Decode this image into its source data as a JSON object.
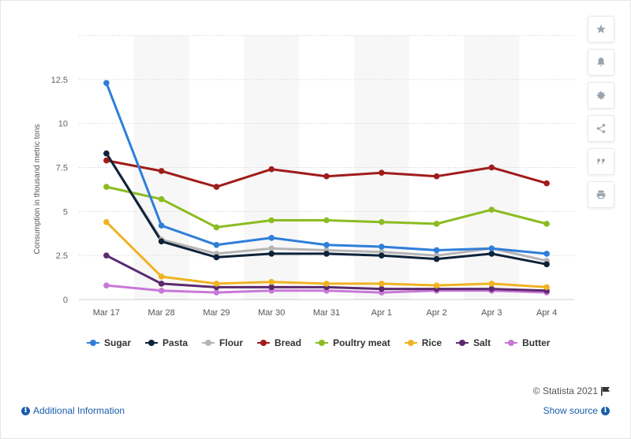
{
  "chart_data": {
    "type": "line",
    "title": "",
    "ylabel": "Consumption in thousand metric tons",
    "xlabel": "",
    "categories": [
      "Mar 17",
      "Mar 28",
      "Mar 29",
      "Mar 30",
      "Mar 31",
      "Apr 1",
      "Apr 2",
      "Apr 3",
      "Apr 4"
    ],
    "ylim": [
      0,
      15
    ],
    "yticks": [
      0,
      2.5,
      5,
      7.5,
      10,
      12.5
    ],
    "ytick_labels": [
      "0",
      "2.5",
      "5",
      "7.5",
      "10",
      "12.5"
    ],
    "grid": true,
    "legend_position": "bottom",
    "series": [
      {
        "name": "Sugar",
        "color": "#2f7ed8",
        "values": [
          12.3,
          4.2,
          3.1,
          3.5,
          3.1,
          3.0,
          2.8,
          2.9,
          2.6
        ]
      },
      {
        "name": "Pasta",
        "color": "#0d233a",
        "values": [
          8.3,
          3.3,
          2.4,
          2.6,
          2.6,
          2.5,
          2.3,
          2.6,
          2.0
        ]
      },
      {
        "name": "Flour",
        "color": "#b5b5b5",
        "values": [
          8.3,
          3.4,
          2.6,
          2.9,
          2.8,
          2.7,
          2.5,
          2.9,
          2.2
        ]
      },
      {
        "name": "Bread",
        "color": "#a01c1c",
        "values": [
          7.9,
          7.3,
          6.4,
          7.4,
          7.0,
          7.2,
          7.0,
          7.5,
          6.6
        ]
      },
      {
        "name": "Poultry meat",
        "color": "#8bbc21",
        "values": [
          6.4,
          5.7,
          4.1,
          4.5,
          4.5,
          4.4,
          4.3,
          5.1,
          4.3
        ]
      },
      {
        "name": "Rice",
        "color": "#f0b323",
        "values": [
          4.4,
          1.3,
          0.9,
          1.0,
          0.9,
          0.9,
          0.8,
          0.9,
          0.7
        ]
      },
      {
        "name": "Salt",
        "color": "#5b2a6e",
        "values": [
          2.5,
          0.9,
          0.7,
          0.7,
          0.7,
          0.6,
          0.6,
          0.6,
          0.5
        ]
      },
      {
        "name": "Butter",
        "color": "#c978d8",
        "values": [
          0.8,
          0.5,
          0.4,
          0.5,
          0.5,
          0.4,
          0.5,
          0.5,
          0.4
        ]
      }
    ]
  },
  "toolbar": {
    "icons": [
      "star-icon",
      "bell-icon",
      "gear-icon",
      "share-icon",
      "quote-icon",
      "print-icon"
    ]
  },
  "footer": {
    "credit": "© Statista 2021",
    "additional_info": "Additional Information",
    "show_source": "Show source"
  }
}
